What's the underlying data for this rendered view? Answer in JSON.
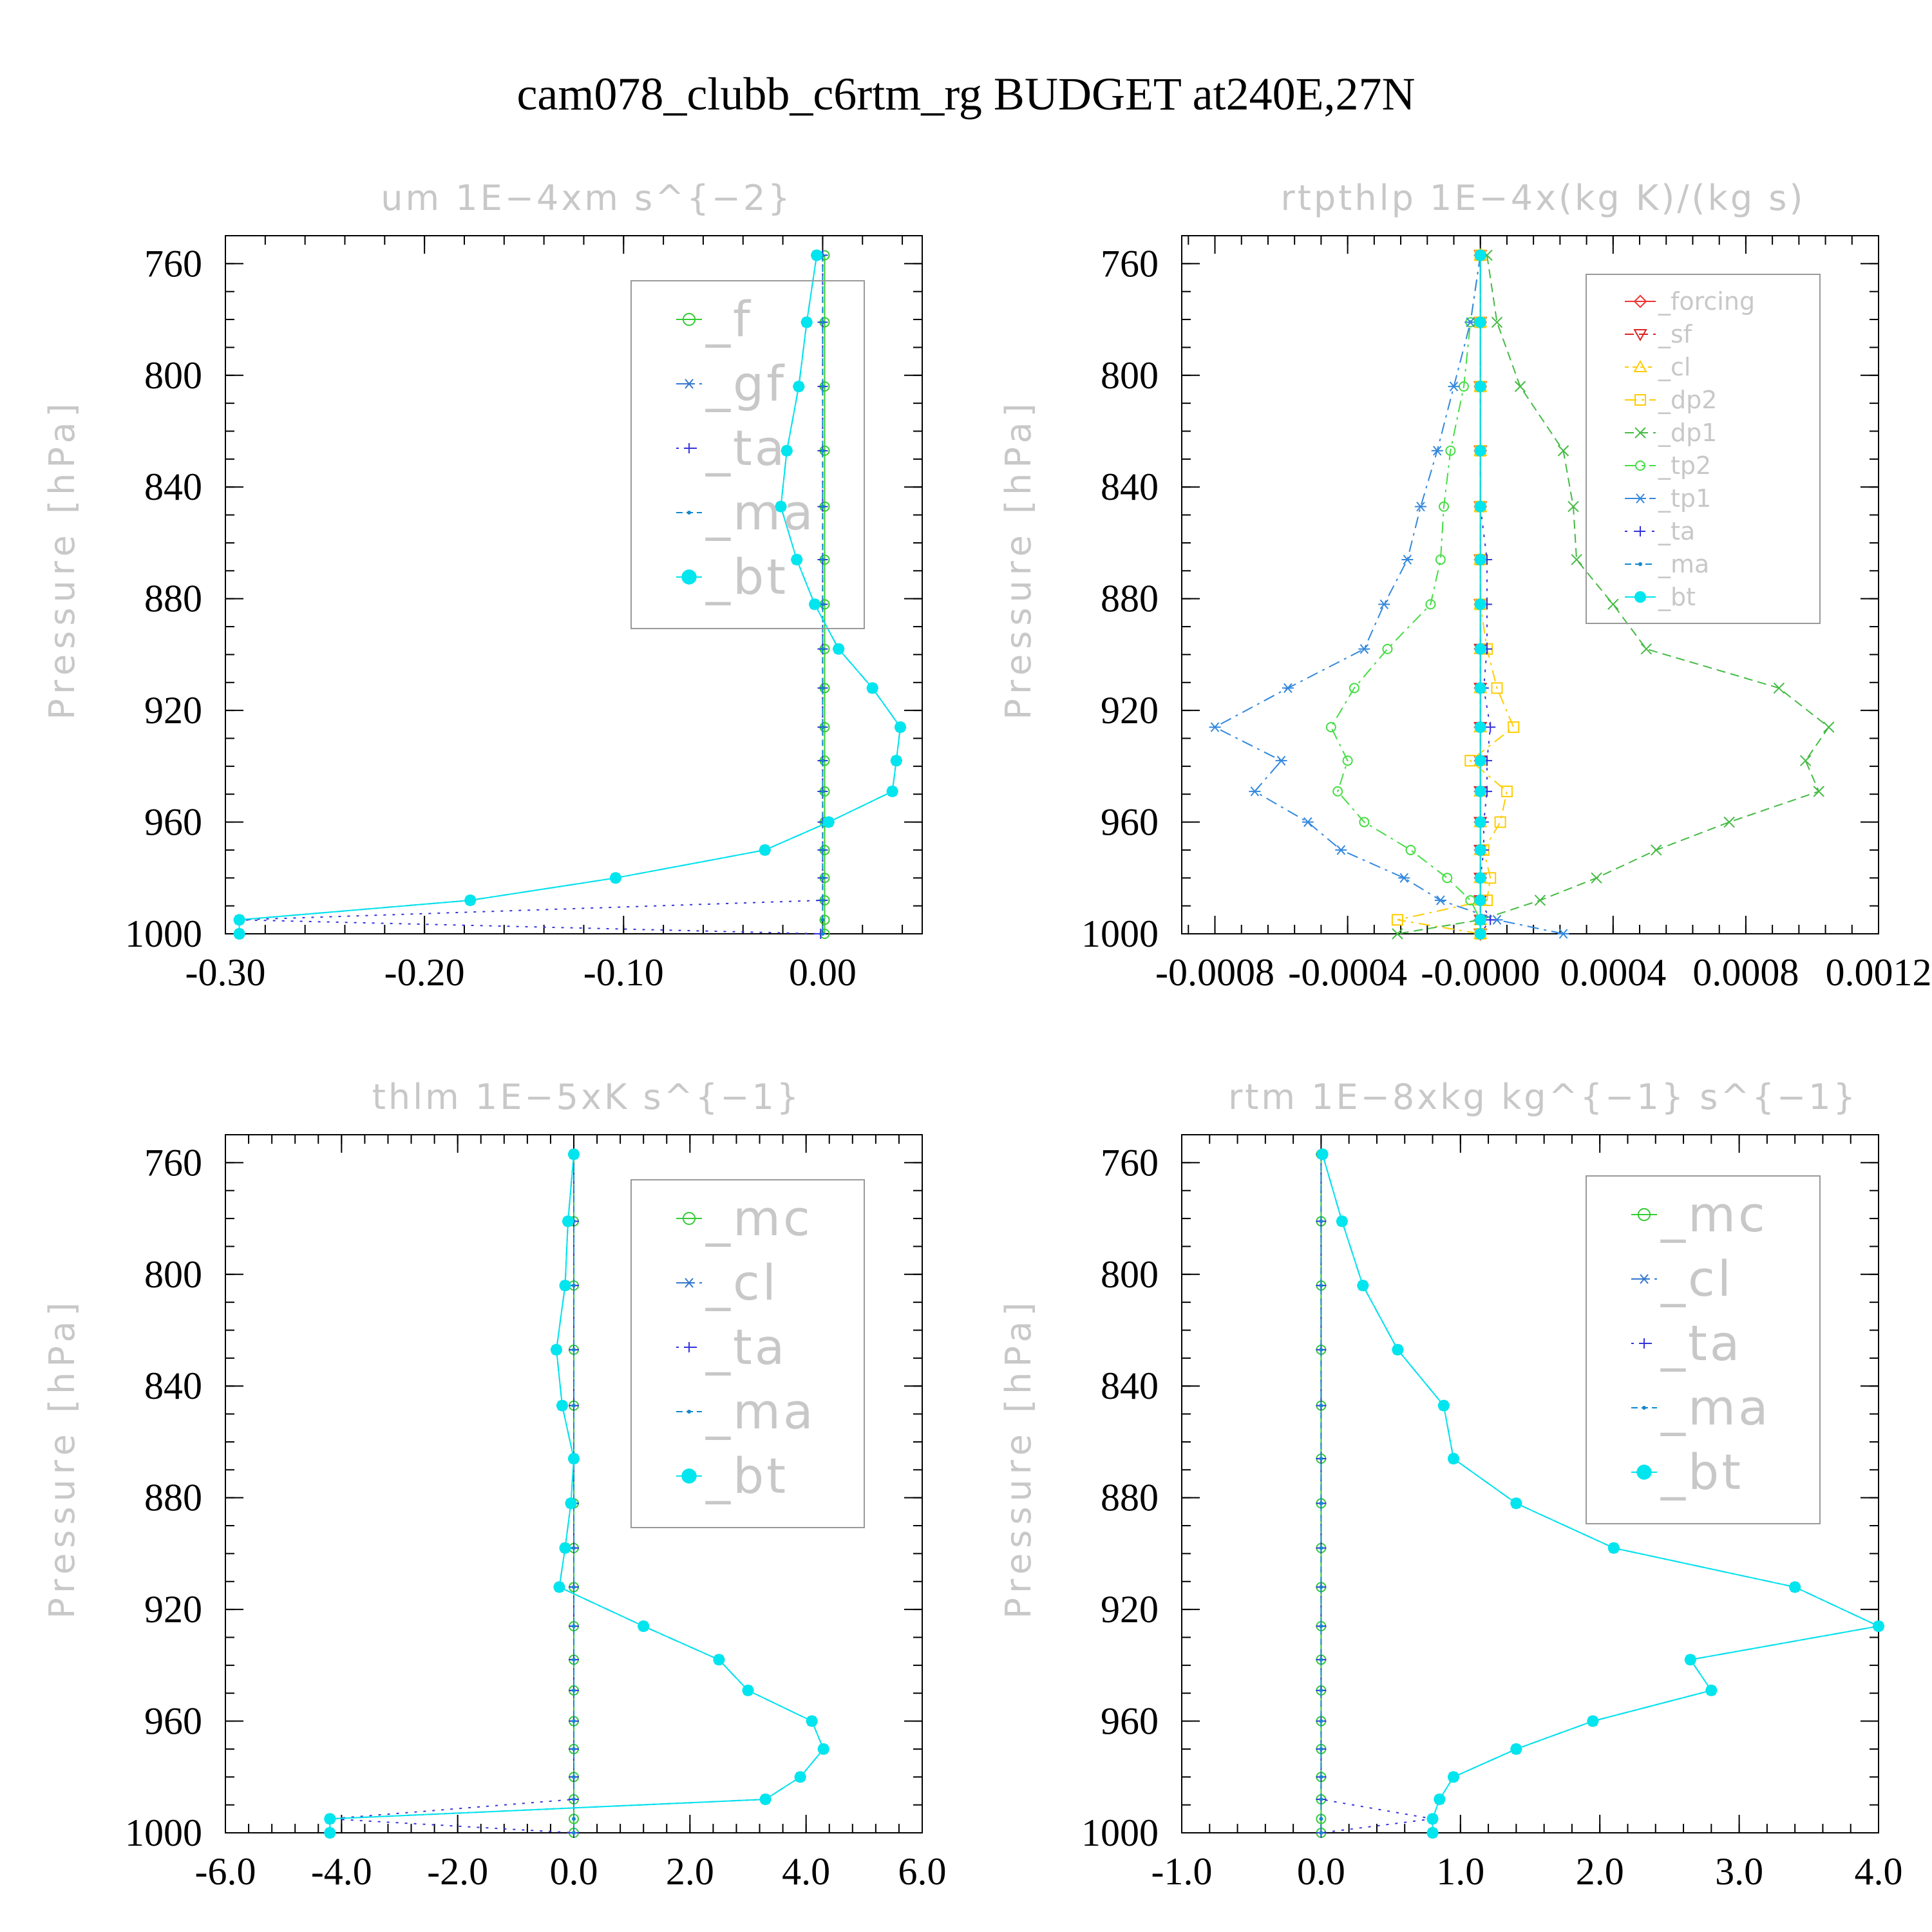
{
  "title": "cam078_clubb_c6rtm_rg  BUDGET at240E,27N",
  "chart_data": [
    {
      "type": "line",
      "title": "um   1E−4xm s^{−2}",
      "ylabel": "Pressure [hPa]",
      "xlim": [
        -0.3,
        0.05
      ],
      "xticks": [
        -0.3,
        -0.2,
        -0.1,
        0.0
      ],
      "xtick_labels": [
        "-0.30",
        "-0.20",
        "-0.10",
        "0.00"
      ],
      "ylim": [
        750,
        1000
      ],
      "yticks": [
        760,
        800,
        840,
        880,
        920,
        960,
        1000
      ],
      "ytick_labels": [
        "760",
        "800",
        "840",
        "880",
        "920",
        "960",
        "1000"
      ],
      "pressure": [
        757,
        781,
        804,
        827,
        847,
        866,
        882,
        898,
        912,
        926,
        938,
        949,
        960,
        970,
        980,
        988,
        995,
        1000
      ],
      "legend_style": "big",
      "series": [
        {
          "name": "_f",
          "color": "#33cc33",
          "marker": "circle",
          "dash": "",
          "values": [
            0.001,
            0.001,
            0.001,
            0.001,
            0.001,
            0.001,
            0.001,
            0.001,
            0.001,
            0.001,
            0.001,
            0.001,
            0.001,
            0.001,
            0.001,
            0.001,
            0.001,
            0.001
          ]
        },
        {
          "name": "_gf",
          "color": "#3377cc",
          "marker": "star",
          "dash": "16 8 4 8",
          "values": [
            -0.003,
            -0.008,
            -0.012,
            -0.018,
            -0.021,
            -0.013,
            -0.004,
            0.008,
            0.025,
            0.039,
            0.037,
            0.035,
            0.003,
            -0.029,
            -0.104,
            -0.177,
            -0.293,
            -0.293
          ]
        },
        {
          "name": "_ta",
          "color": "#3333dd",
          "marker": "plus",
          "dash": "4 10",
          "values": [
            0,
            0,
            0,
            0,
            0,
            0,
            0,
            0,
            0,
            0,
            0,
            0,
            0,
            0,
            0,
            0,
            -0.293,
            -0.001
          ]
        },
        {
          "name": "_ma",
          "color": "#1188cc",
          "marker": "dot",
          "dash": "10 6",
          "values": [
            0,
            0,
            0,
            0,
            0,
            0,
            0,
            0,
            0,
            0,
            0,
            0,
            0,
            0,
            0,
            0,
            0,
            0
          ]
        },
        {
          "name": "_bt",
          "color": "#00e5ee",
          "marker": "bigdot",
          "dash": "",
          "values": [
            -0.003,
            -0.008,
            -0.012,
            -0.018,
            -0.021,
            -0.013,
            -0.004,
            0.008,
            0.025,
            0.039,
            0.037,
            0.035,
            0.003,
            -0.029,
            -0.104,
            -0.177,
            -0.293,
            -0.293
          ]
        }
      ]
    },
    {
      "type": "line",
      "title": "rtpthlp   1E−4x(kg K)/(kg s)",
      "ylabel": "Pressure [hPa]",
      "xlim": [
        -0.0009,
        0.0012
      ],
      "xticks": [
        -0.0008,
        -0.0004,
        0.0,
        0.0004,
        0.0008,
        0.0012
      ],
      "xtick_labels": [
        "-0.0008",
        "-0.0004",
        "-0.0000",
        "0.0004",
        "0.0008",
        "0.0012"
      ],
      "ylim": [
        750,
        1000
      ],
      "yticks": [
        760,
        800,
        840,
        880,
        920,
        960,
        1000
      ],
      "ytick_labels": [
        "760",
        "800",
        "840",
        "880",
        "920",
        "960",
        "1000"
      ],
      "pressure": [
        757,
        781,
        804,
        827,
        847,
        866,
        882,
        898,
        912,
        926,
        938,
        949,
        960,
        970,
        980,
        988,
        995,
        1000
      ],
      "legend_style": "small",
      "series": [
        {
          "name": "_forcing",
          "color": "#ee3333",
          "marker": "diamond",
          "dash": "",
          "values": [
            0,
            0,
            0,
            0,
            0,
            0,
            0,
            0,
            0,
            0,
            0,
            0,
            0,
            0,
            0,
            0,
            0,
            0
          ]
        },
        {
          "name": "_sf",
          "color": "#dd2222",
          "marker": "tridown",
          "dash": "14 8",
          "values": [
            0,
            0,
            0,
            0,
            0,
            0,
            0,
            0,
            0,
            0,
            0,
            0,
            0,
            0,
            0,
            0,
            0,
            0
          ]
        },
        {
          "name": "_cl",
          "color": "#ffcc00",
          "marker": "triup",
          "dash": "6 6",
          "values": [
            0,
            0,
            0,
            0,
            0,
            0,
            0,
            0,
            0,
            0,
            0,
            0,
            0,
            0,
            0,
            0,
            0,
            0
          ]
        },
        {
          "name": "_dp2",
          "color": "#ffcc00",
          "marker": "square",
          "dash": "18 8 4 8",
          "values": [
            0,
            0,
            0,
            0,
            0,
            0,
            0,
            2e-05,
            5e-05,
            0.0001,
            -3e-05,
            8e-05,
            6e-05,
            1e-05,
            3e-05,
            2e-05,
            -0.00025,
            0
          ]
        },
        {
          "name": "_dp1",
          "color": "#44bb44",
          "marker": "cross",
          "dash": "14 8",
          "values": [
            2e-05,
            5e-05,
            0.00012,
            0.00025,
            0.00028,
            0.00029,
            0.0004,
            0.0005,
            0.0009,
            0.00105,
            0.00098,
            0.00102,
            0.00075,
            0.00053,
            0.00035,
            0.00018,
            0.0,
            -0.00025
          ]
        },
        {
          "name": "_tp2",
          "color": "#44dd44",
          "marker": "circle",
          "dash": "18 8 4 8",
          "values": [
            0,
            -3e-05,
            -5e-05,
            -9e-05,
            -0.00011,
            -0.00012,
            -0.00015,
            -0.00028,
            -0.00038,
            -0.00045,
            -0.0004,
            -0.00043,
            -0.00035,
            -0.00021,
            -0.0001,
            -3e-05,
            0,
            0
          ]
        },
        {
          "name": "_tp1",
          "color": "#3388dd",
          "marker": "star",
          "dash": "18 8 4 8",
          "values": [
            0,
            -3e-05,
            -8e-05,
            -0.00013,
            -0.00018,
            -0.00022,
            -0.00029,
            -0.00035,
            -0.00058,
            -0.0008,
            -0.0006,
            -0.00068,
            -0.00052,
            -0.00042,
            -0.00023,
            -0.00012,
            5e-05,
            0.00025
          ]
        },
        {
          "name": "_ta",
          "color": "#3333dd",
          "marker": "plus",
          "dash": "4 10",
          "values": [
            0,
            0,
            0,
            0,
            0,
            2e-05,
            2e-05,
            2e-05,
            1e-05,
            3e-05,
            2e-05,
            2e-05,
            1e-05,
            1e-05,
            0,
            0,
            3e-05,
            0
          ]
        },
        {
          "name": "_ma",
          "color": "#1188cc",
          "marker": "dot",
          "dash": "10 6",
          "values": [
            0,
            0,
            0,
            0,
            0,
            0,
            0,
            0,
            0,
            0,
            0,
            0,
            0,
            0,
            0,
            0,
            0,
            0
          ]
        },
        {
          "name": "_bt",
          "color": "#00e5ee",
          "marker": "bigdot",
          "dash": "",
          "values": [
            0,
            0,
            0,
            0,
            0,
            0,
            0,
            0,
            0,
            0,
            0,
            0,
            0,
            0,
            0,
            0,
            0,
            0
          ]
        }
      ]
    },
    {
      "type": "line",
      "title": "thlm   1E−5xK s^{−1}",
      "ylabel": "Pressure [hPa]",
      "xlim": [
        -6.0,
        6.0
      ],
      "xticks": [
        -6.0,
        -4.0,
        -2.0,
        0.0,
        2.0,
        4.0,
        6.0
      ],
      "xtick_labels": [
        "-6.0",
        "-4.0",
        "-2.0",
        "0.0",
        "2.0",
        "4.0",
        "6.0"
      ],
      "ylim": [
        750,
        1000
      ],
      "yticks": [
        760,
        800,
        840,
        880,
        920,
        960,
        1000
      ],
      "ytick_labels": [
        "760",
        "800",
        "840",
        "880",
        "920",
        "960",
        "1000"
      ],
      "pressure": [
        757,
        781,
        804,
        827,
        847,
        866,
        882,
        898,
        912,
        926,
        938,
        949,
        960,
        970,
        980,
        988,
        995,
        1000
      ],
      "legend_style": "big",
      "series": [
        {
          "name": "_mc",
          "color": "#33cc33",
          "marker": "circle",
          "dash": "",
          "values": [
            0,
            0,
            0,
            0,
            0,
            0,
            0,
            0,
            0,
            0,
            0,
            0,
            0,
            0,
            0,
            0,
            0,
            0
          ]
        },
        {
          "name": "_cl",
          "color": "#3377cc",
          "marker": "star",
          "dash": "16 8 4 8",
          "values": [
            0,
            -0.1,
            -0.15,
            -0.3,
            -0.2,
            0.0,
            -0.05,
            -0.15,
            -0.25,
            1.2,
            2.5,
            3.0,
            4.1,
            4.3,
            3.9,
            3.3,
            -4.2,
            -4.2
          ]
        },
        {
          "name": "_ta",
          "color": "#3333dd",
          "marker": "plus",
          "dash": "4 10",
          "values": [
            0,
            0,
            0,
            0,
            0,
            0,
            0,
            0,
            0,
            0,
            0,
            0,
            0,
            0,
            0,
            0,
            -4.2,
            0
          ]
        },
        {
          "name": "_ma",
          "color": "#1188cc",
          "marker": "dot",
          "dash": "10 6",
          "values": [
            0,
            0,
            0,
            0,
            0,
            0,
            0,
            0,
            0,
            0,
            0,
            0,
            0,
            0,
            0,
            0,
            0,
            0
          ]
        },
        {
          "name": "_bt",
          "color": "#00e5ee",
          "marker": "bigdot",
          "dash": "",
          "values": [
            0,
            -0.1,
            -0.15,
            -0.3,
            -0.2,
            0.0,
            -0.05,
            -0.15,
            -0.25,
            1.2,
            2.5,
            3.0,
            4.1,
            4.3,
            3.9,
            3.3,
            -4.2,
            -4.2
          ]
        }
      ]
    },
    {
      "type": "line",
      "title": "rtm   1E−8xkg kg^{−1} s^{−1}",
      "ylabel": "Pressure [hPa]",
      "xlim": [
        -1.0,
        4.0
      ],
      "xticks": [
        -1.0,
        0.0,
        1.0,
        2.0,
        3.0,
        4.0
      ],
      "xtick_labels": [
        "-1.0",
        "0.0",
        "1.0",
        "2.0",
        "3.0",
        "4.0"
      ],
      "ylim": [
        750,
        1000
      ],
      "yticks": [
        760,
        800,
        840,
        880,
        920,
        960,
        1000
      ],
      "ytick_labels": [
        "760",
        "800",
        "840",
        "880",
        "920",
        "960",
        "1000"
      ],
      "pressure": [
        757,
        781,
        804,
        827,
        847,
        866,
        882,
        898,
        912,
        926,
        938,
        949,
        960,
        970,
        980,
        988,
        995,
        1000
      ],
      "legend_style": "big",
      "series": [
        {
          "name": "_mc",
          "color": "#33cc33",
          "marker": "circle",
          "dash": "",
          "values": [
            0,
            0,
            0,
            0,
            0,
            0,
            0,
            0,
            0,
            0,
            0,
            0,
            0,
            0,
            0,
            0,
            0,
            0
          ]
        },
        {
          "name": "_cl",
          "color": "#3377cc",
          "marker": "star",
          "dash": "16 8 4 8",
          "values": [
            0.01,
            0.15,
            0.3,
            0.55,
            0.88,
            0.95,
            1.4,
            2.1,
            3.4,
            4.0,
            2.65,
            2.8,
            1.95,
            1.4,
            0.95,
            0.85,
            0.8,
            0.8
          ]
        },
        {
          "name": "_ta",
          "color": "#3333dd",
          "marker": "plus",
          "dash": "4 10",
          "values": [
            0,
            0,
            0,
            0,
            0,
            0,
            0,
            0,
            0,
            0,
            0,
            0,
            0,
            0,
            0,
            0,
            0.8,
            0
          ]
        },
        {
          "name": "_ma",
          "color": "#1188cc",
          "marker": "dot",
          "dash": "10 6",
          "values": [
            0,
            0,
            0,
            0,
            0,
            0,
            0,
            0,
            0,
            0,
            0,
            0,
            0,
            0,
            0,
            0,
            0,
            0
          ]
        },
        {
          "name": "_bt",
          "color": "#00e5ee",
          "marker": "bigdot",
          "dash": "",
          "values": [
            0.01,
            0.15,
            0.3,
            0.55,
            0.88,
            0.95,
            1.4,
            2.1,
            3.4,
            4.0,
            2.65,
            2.8,
            1.95,
            1.4,
            0.95,
            0.85,
            0.8,
            0.8
          ]
        }
      ]
    }
  ]
}
